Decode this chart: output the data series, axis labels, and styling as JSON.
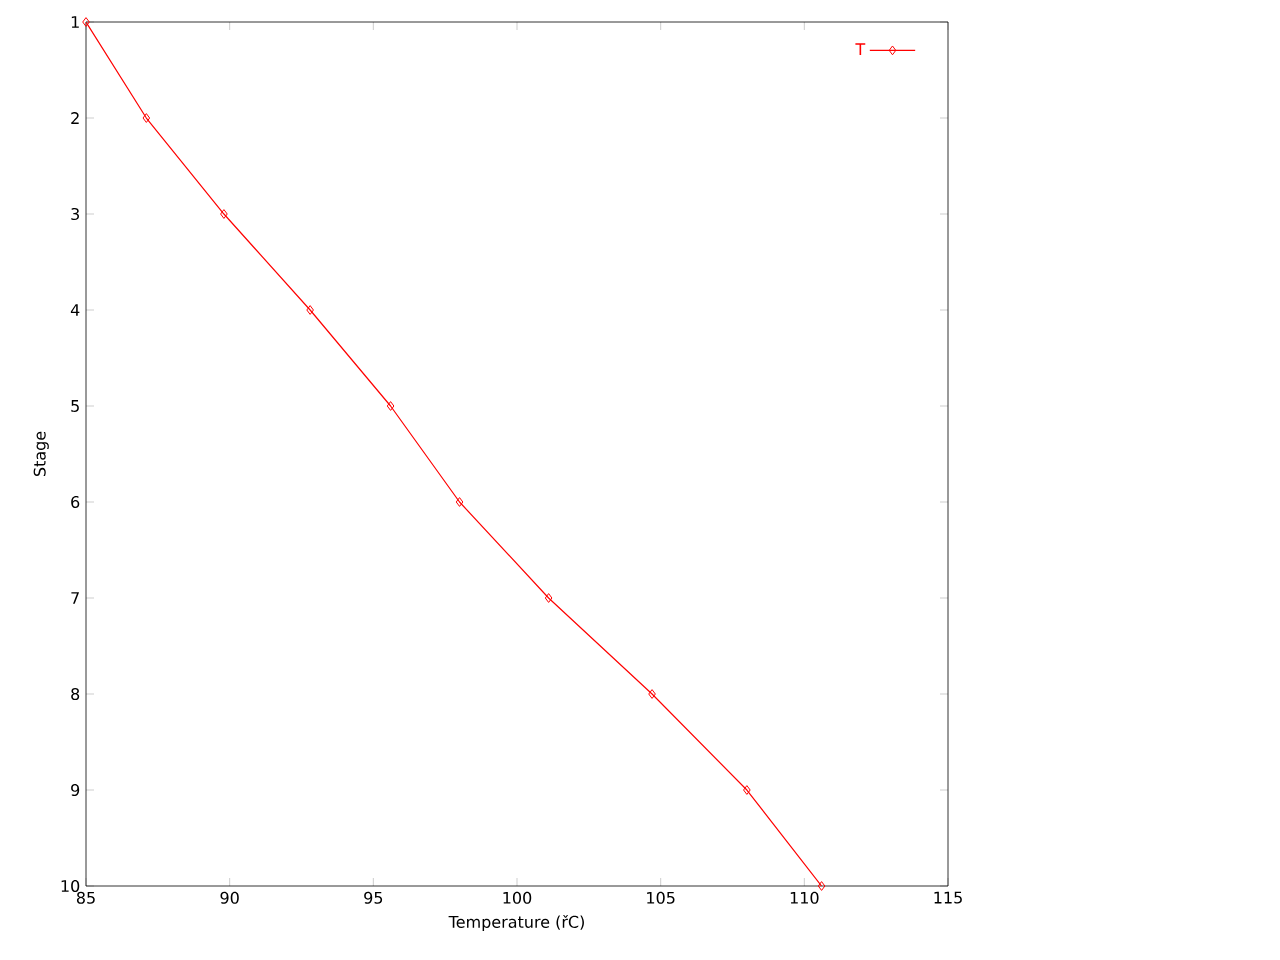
{
  "chart_data": {
    "type": "line",
    "xlabel": "Temperature (řC)",
    "ylabel": "Stage",
    "x": [
      85.0,
      87.1,
      89.8,
      92.8,
      95.6,
      98.0,
      101.1,
      104.7,
      108.0,
      110.6
    ],
    "series": [
      {
        "name": "T",
        "color": "#ff0000",
        "values": [
          1,
          2,
          3,
          4,
          5,
          6,
          7,
          8,
          9,
          10
        ]
      }
    ],
    "xlim": [
      85,
      115
    ],
    "xticks": [
      85,
      90,
      95,
      100,
      105,
      110,
      115
    ],
    "ylim": [
      10,
      1
    ],
    "yticks": [
      1,
      2,
      3,
      4,
      5,
      6,
      7,
      8,
      9,
      10
    ],
    "grid": false,
    "legend": "top right",
    "marker": "diamond",
    "line_style": "solid"
  }
}
